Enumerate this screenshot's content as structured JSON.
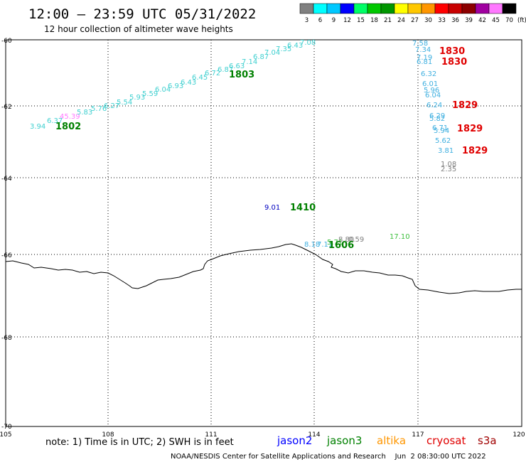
{
  "header": {
    "title": "12:00 – 23:59 UTC 05/31/2022",
    "subtitle": "12 hour collection of altimeter wave heights"
  },
  "colorbar": {
    "unit": "(ft)",
    "labels": [
      "3",
      "6",
      "9",
      "12",
      "15",
      "18",
      "21",
      "24",
      "27",
      "30",
      "33",
      "36",
      "39",
      "42",
      "45",
      "70"
    ],
    "colors": [
      "#808080",
      "#00ffff",
      "#00c8ff",
      "#0000ff",
      "#00ff66",
      "#00c800",
      "#009600",
      "#ffff00",
      "#ffc800",
      "#ff9600",
      "#ff0000",
      "#c80000",
      "#8c0000",
      "#a000a0",
      "#ff78ff",
      "#000000"
    ]
  },
  "axes": {
    "lat_labels": [
      "-60",
      "-62",
      "-64",
      "-66",
      "-68",
      "-70"
    ],
    "lon_labels": [
      "105",
      "108",
      "111",
      "114",
      "117",
      "120"
    ]
  },
  "tracks": [
    {
      "label": "1802",
      "color": "#008000",
      "points": [
        {
          "v": "3.94",
          "c": "#40d0d0"
        },
        {
          "v": "6.37",
          "c": "#40d0d0"
        },
        {
          "v": "45.39",
          "c": "#ff78ff"
        },
        {
          "v": "5.83",
          "c": "#40d0d0"
        },
        {
          "v": "5.76",
          "c": "#40d0d0"
        },
        {
          "v": "6.27",
          "c": "#40d0d0"
        }
      ]
    },
    {
      "label": "1803",
      "color": "#008000",
      "points": [
        {
          "v": "5.54",
          "c": "#40d0d0"
        },
        {
          "v": "5.93",
          "c": "#40d0d0"
        },
        {
          "v": "5.59",
          "c": "#40d0d0"
        },
        {
          "v": "6.04",
          "c": "#40d0d0"
        },
        {
          "v": "6.93",
          "c": "#40d0d0"
        },
        {
          "v": "6.43",
          "c": "#40d0d0"
        },
        {
          "v": "6.45",
          "c": "#40d0d0"
        },
        {
          "v": "6.72",
          "c": "#40d0d0"
        },
        {
          "v": "6.87",
          "c": "#40d0d0"
        },
        {
          "v": "6.63",
          "c": "#40d0d0"
        },
        {
          "v": "7.14",
          "c": "#40d0d0"
        },
        {
          "v": "6.87",
          "c": "#40d0d0"
        },
        {
          "v": "7.04",
          "c": "#40d0d0"
        },
        {
          "v": "7.35",
          "c": "#40d0d0"
        },
        {
          "v": "6.43",
          "c": "#40d0d0"
        },
        {
          "v": "7.08",
          "c": "#40d0d0"
        }
      ]
    },
    {
      "label": "1830",
      "color": "#e00000",
      "points": [
        {
          "v": "7.58",
          "c": "#40b0e0"
        },
        {
          "v": "7.34",
          "c": "#40b0e0"
        },
        {
          "v": "7.19",
          "c": "#40b0e0"
        },
        {
          "v": "6.81",
          "c": "#40b0e0"
        },
        {
          "v": "6.32",
          "c": "#40b0e0"
        },
        {
          "v": "6.01",
          "c": "#40b0e0"
        },
        {
          "v": "5.96",
          "c": "#40b0e0"
        },
        {
          "v": "6.04",
          "c": "#40b0e0"
        }
      ]
    },
    {
      "label": "1830",
      "color": "#e00000"
    },
    {
      "label": "1829",
      "color": "#e00000",
      "points": [
        {
          "v": "6.24",
          "c": "#40b0e0"
        },
        {
          "v": "6.29",
          "c": "#40b0e0"
        },
        {
          "v": "5.82",
          "c": "#40b0e0"
        },
        {
          "v": "6.71",
          "c": "#40b0e0"
        },
        {
          "v": "5.94",
          "c": "#40b0e0"
        },
        {
          "v": "5.62",
          "c": "#40b0e0"
        },
        {
          "v": "3.81",
          "c": "#40b0e0"
        },
        {
          "v": "1.08",
          "c": "#808080"
        },
        {
          "v": "2.35",
          "c": "#808080"
        }
      ]
    },
    {
      "label": "1829",
      "color": "#e00000"
    },
    {
      "label": "1829",
      "color": "#e00000"
    },
    {
      "label": "1410",
      "color": "#008000",
      "points": [
        {
          "v": "9.01",
          "c": "#0000c0"
        }
      ]
    },
    {
      "label": "1606",
      "color": "#008000",
      "points": [
        {
          "v": "8.18",
          "c": "#40b0e0"
        },
        {
          "v": "7.11",
          "c": "#40b0e0"
        },
        {
          "v": "5.71",
          "c": "#40c040"
        },
        {
          "v": "8.80",
          "c": "#808080"
        },
        {
          "v": "0.59",
          "c": "#808080"
        },
        {
          "v": "17.10",
          "c": "#40c040"
        }
      ]
    }
  ],
  "footer": {
    "note": "note: 1) Time is in UTC; 2) SWH is in feet",
    "missions": [
      {
        "name": "jason2",
        "color": "#0000ff"
      },
      {
        "name": "jason3",
        "color": "#008000"
      },
      {
        "name": "altika",
        "color": "#ff9600"
      },
      {
        "name": "cryosat",
        "color": "#e00000"
      },
      {
        "name": "s3a",
        "color": "#a00000"
      }
    ],
    "credit": "NOAA/NESDIS Center for Satellite Applications and Research    Jun  2 08:30:00 UTC 2022"
  }
}
